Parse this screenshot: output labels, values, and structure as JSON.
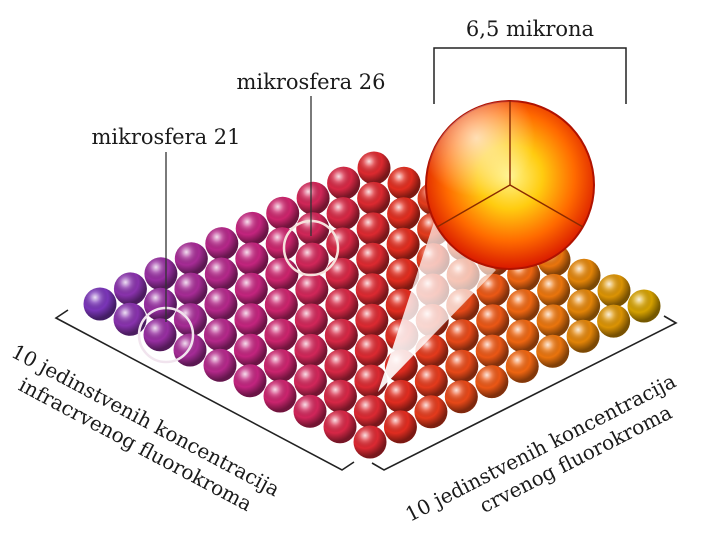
{
  "size_label": "6,5 mikrona",
  "callouts": [
    {
      "name": "mikrosfera-21-callout",
      "text": "mikrosfera 21"
    },
    {
      "name": "mikrosfera-26-callout",
      "text": "mikrosfera 26"
    }
  ],
  "left_axis": {
    "line1": "10 jedinstvenih koncentracija",
    "line2": "infracrvenog fluorokroma"
  },
  "right_axis": {
    "line1": "10 jedinstvenih koncentracija",
    "line2": "crvenog fluorokroma"
  },
  "grid": {
    "rows": 10,
    "cols": 10,
    "total": 100
  },
  "colors": {
    "violet": "#7a35b8",
    "magenta": "#c8237a",
    "red": "#e02a20",
    "orange": "#ef6a10",
    "gold": "#d4a000",
    "big_sphere": "#ff3300"
  }
}
